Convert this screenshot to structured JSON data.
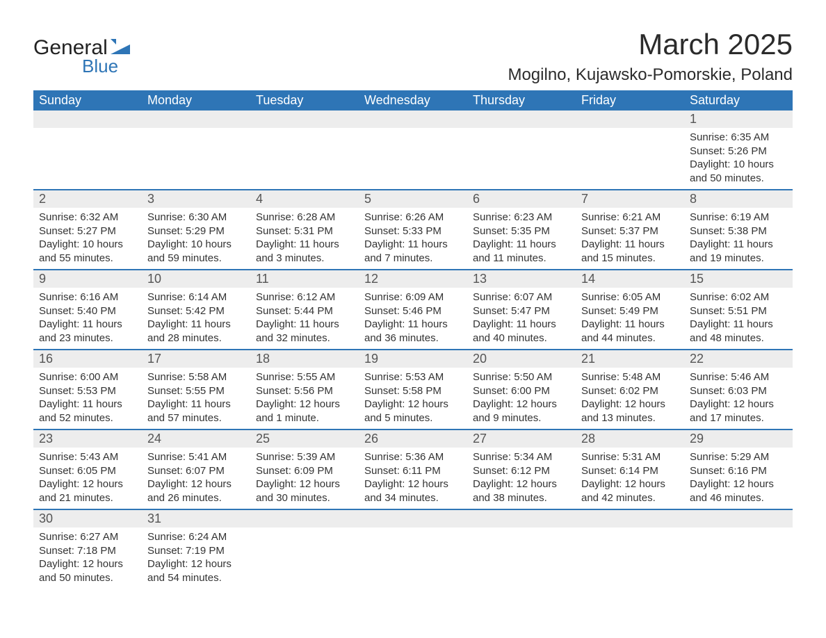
{
  "logo": {
    "text1": "General",
    "text2": "Blue",
    "flag_color": "#2e75b6"
  },
  "title": "March 2025",
  "location": "Mogilno, Kujawsko-Pomorskie, Poland",
  "header_bg": "#2e75b6",
  "daynum_bg": "#ededed",
  "row_border_color": "#2e75b6",
  "weekdays": [
    "Sunday",
    "Monday",
    "Tuesday",
    "Wednesday",
    "Thursday",
    "Friday",
    "Saturday"
  ],
  "weeks": [
    {
      "nums": [
        "",
        "",
        "",
        "",
        "",
        "",
        "1"
      ],
      "cells": [
        null,
        null,
        null,
        null,
        null,
        null,
        {
          "sunrise": "6:35 AM",
          "sunset": "5:26 PM",
          "daylight": "10 hours and 50 minutes."
        }
      ]
    },
    {
      "nums": [
        "2",
        "3",
        "4",
        "5",
        "6",
        "7",
        "8"
      ],
      "cells": [
        {
          "sunrise": "6:32 AM",
          "sunset": "5:27 PM",
          "daylight": "10 hours and 55 minutes."
        },
        {
          "sunrise": "6:30 AM",
          "sunset": "5:29 PM",
          "daylight": "10 hours and 59 minutes."
        },
        {
          "sunrise": "6:28 AM",
          "sunset": "5:31 PM",
          "daylight": "11 hours and 3 minutes."
        },
        {
          "sunrise": "6:26 AM",
          "sunset": "5:33 PM",
          "daylight": "11 hours and 7 minutes."
        },
        {
          "sunrise": "6:23 AM",
          "sunset": "5:35 PM",
          "daylight": "11 hours and 11 minutes."
        },
        {
          "sunrise": "6:21 AM",
          "sunset": "5:37 PM",
          "daylight": "11 hours and 15 minutes."
        },
        {
          "sunrise": "6:19 AM",
          "sunset": "5:38 PM",
          "daylight": "11 hours and 19 minutes."
        }
      ]
    },
    {
      "nums": [
        "9",
        "10",
        "11",
        "12",
        "13",
        "14",
        "15"
      ],
      "cells": [
        {
          "sunrise": "6:16 AM",
          "sunset": "5:40 PM",
          "daylight": "11 hours and 23 minutes."
        },
        {
          "sunrise": "6:14 AM",
          "sunset": "5:42 PM",
          "daylight": "11 hours and 28 minutes."
        },
        {
          "sunrise": "6:12 AM",
          "sunset": "5:44 PM",
          "daylight": "11 hours and 32 minutes."
        },
        {
          "sunrise": "6:09 AM",
          "sunset": "5:46 PM",
          "daylight": "11 hours and 36 minutes."
        },
        {
          "sunrise": "6:07 AM",
          "sunset": "5:47 PM",
          "daylight": "11 hours and 40 minutes."
        },
        {
          "sunrise": "6:05 AM",
          "sunset": "5:49 PM",
          "daylight": "11 hours and 44 minutes."
        },
        {
          "sunrise": "6:02 AM",
          "sunset": "5:51 PM",
          "daylight": "11 hours and 48 minutes."
        }
      ]
    },
    {
      "nums": [
        "16",
        "17",
        "18",
        "19",
        "20",
        "21",
        "22"
      ],
      "cells": [
        {
          "sunrise": "6:00 AM",
          "sunset": "5:53 PM",
          "daylight": "11 hours and 52 minutes."
        },
        {
          "sunrise": "5:58 AM",
          "sunset": "5:55 PM",
          "daylight": "11 hours and 57 minutes."
        },
        {
          "sunrise": "5:55 AM",
          "sunset": "5:56 PM",
          "daylight": "12 hours and 1 minute."
        },
        {
          "sunrise": "5:53 AM",
          "sunset": "5:58 PM",
          "daylight": "12 hours and 5 minutes."
        },
        {
          "sunrise": "5:50 AM",
          "sunset": "6:00 PM",
          "daylight": "12 hours and 9 minutes."
        },
        {
          "sunrise": "5:48 AM",
          "sunset": "6:02 PM",
          "daylight": "12 hours and 13 minutes."
        },
        {
          "sunrise": "5:46 AM",
          "sunset": "6:03 PM",
          "daylight": "12 hours and 17 minutes."
        }
      ]
    },
    {
      "nums": [
        "23",
        "24",
        "25",
        "26",
        "27",
        "28",
        "29"
      ],
      "cells": [
        {
          "sunrise": "5:43 AM",
          "sunset": "6:05 PM",
          "daylight": "12 hours and 21 minutes."
        },
        {
          "sunrise": "5:41 AM",
          "sunset": "6:07 PM",
          "daylight": "12 hours and 26 minutes."
        },
        {
          "sunrise": "5:39 AM",
          "sunset": "6:09 PM",
          "daylight": "12 hours and 30 minutes."
        },
        {
          "sunrise": "5:36 AM",
          "sunset": "6:11 PM",
          "daylight": "12 hours and 34 minutes."
        },
        {
          "sunrise": "5:34 AM",
          "sunset": "6:12 PM",
          "daylight": "12 hours and 38 minutes."
        },
        {
          "sunrise": "5:31 AM",
          "sunset": "6:14 PM",
          "daylight": "12 hours and 42 minutes."
        },
        {
          "sunrise": "5:29 AM",
          "sunset": "6:16 PM",
          "daylight": "12 hours and 46 minutes."
        }
      ]
    },
    {
      "nums": [
        "30",
        "31",
        "",
        "",
        "",
        "",
        ""
      ],
      "cells": [
        {
          "sunrise": "6:27 AM",
          "sunset": "7:18 PM",
          "daylight": "12 hours and 50 minutes."
        },
        {
          "sunrise": "6:24 AM",
          "sunset": "7:19 PM",
          "daylight": "12 hours and 54 minutes."
        },
        null,
        null,
        null,
        null,
        null
      ]
    }
  ],
  "labels": {
    "sunrise": "Sunrise: ",
    "sunset": "Sunset: ",
    "daylight": "Daylight: "
  }
}
